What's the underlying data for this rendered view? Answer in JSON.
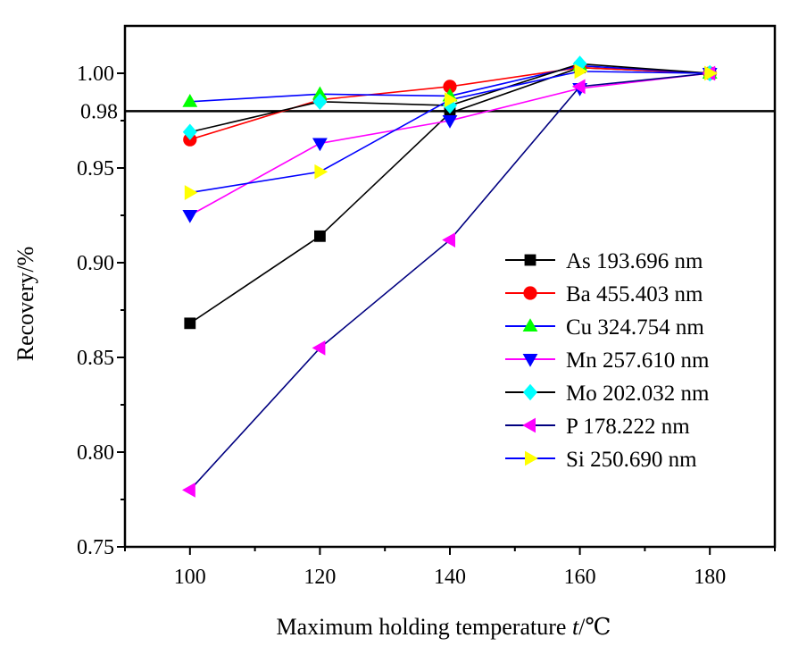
{
  "chart_data": {
    "type": "line",
    "xlabel": "Maximum holding temperature ",
    "xlabel_var": "t",
    "xlabel_unit": "/℃",
    "ylabel": "Recovery/%",
    "xlim": [
      90,
      190
    ],
    "ylim": [
      0.75,
      1.025
    ],
    "xticks": [
      100,
      120,
      140,
      160,
      180
    ],
    "xtick_labels": [
      "100",
      "120",
      "140",
      "160",
      "180"
    ],
    "yticks": [
      0.75,
      0.8,
      0.85,
      0.9,
      0.95,
      1.0
    ],
    "ytick_labels": [
      "0.75",
      "0.80",
      "0.85",
      "0.90",
      "0.95",
      "1.00"
    ],
    "reference_line": {
      "y": 0.98,
      "label": "0.98"
    },
    "x": [
      100,
      120,
      140,
      160,
      180
    ],
    "series": [
      {
        "name": "As 193.696 nm",
        "marker": "square",
        "line_color": "#000000",
        "marker_color": "#000000",
        "values": [
          0.868,
          0.914,
          0.979,
          1.003,
          1.0
        ]
      },
      {
        "name": "Ba 455.403 nm",
        "marker": "circle",
        "line_color": "#ff0000",
        "marker_color": "#ff0000",
        "values": [
          0.965,
          0.986,
          0.993,
          1.003,
          1.0
        ]
      },
      {
        "name": "Cu 324.754 nm",
        "marker": "triangle-up",
        "line_color": "#0000ff",
        "marker_color": "#00ff00",
        "values": [
          0.985,
          0.989,
          0.988,
          1.004,
          1.0
        ]
      },
      {
        "name": "Mn 257.610 nm",
        "marker": "triangle-down",
        "line_color": "#ff00ff",
        "marker_color": "#0000ff",
        "values": [
          0.925,
          0.963,
          0.975,
          0.992,
          1.0
        ]
      },
      {
        "name": "Mo 202.032 nm",
        "marker": "diamond",
        "line_color": "#000000",
        "marker_color": "#00ffff",
        "values": [
          0.969,
          0.985,
          0.983,
          1.005,
          1.0
        ]
      },
      {
        "name": "P 178.222 nm",
        "marker": "triangle-left",
        "line_color": "#000080",
        "marker_color": "#ff00ff",
        "values": [
          0.78,
          0.855,
          0.912,
          0.993,
          1.0
        ]
      },
      {
        "name": "Si 250.690 nm",
        "marker": "triangle-right",
        "line_color": "#0000ff",
        "marker_color": "#ffff00",
        "values": [
          0.937,
          0.948,
          0.986,
          1.001,
          1.0
        ]
      }
    ],
    "legend_position": "center-right",
    "grid": false
  }
}
